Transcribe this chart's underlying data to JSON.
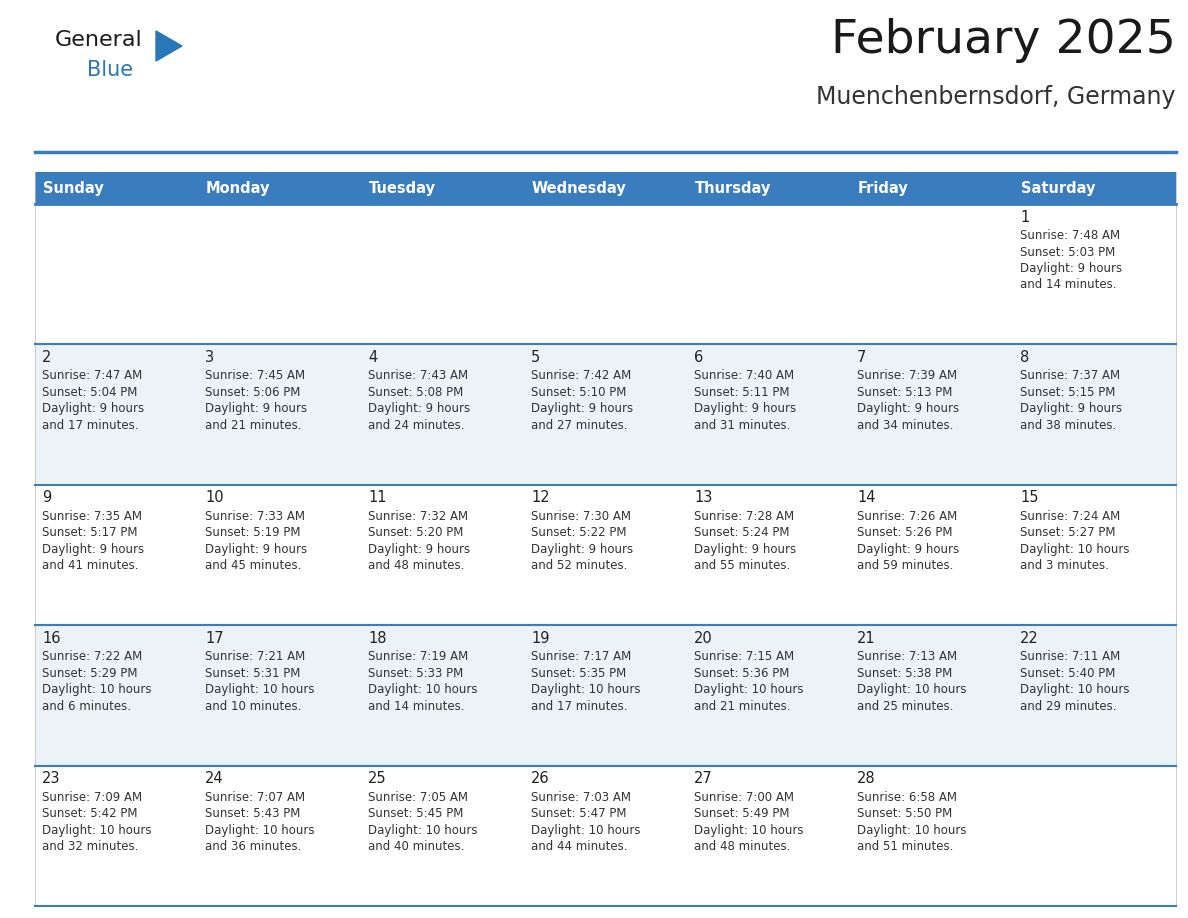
{
  "title": "February 2025",
  "subtitle": "Muenchenbernsdorf, Germany",
  "days_of_week": [
    "Sunday",
    "Monday",
    "Tuesday",
    "Wednesday",
    "Thursday",
    "Friday",
    "Saturday"
  ],
  "header_bg": "#3a7dbf",
  "header_text": "#ffffff",
  "row_bg_odd": "#ffffff",
  "row_bg_even": "#edf2f7",
  "border_color": "#3a7dbf",
  "day_number_color": "#222222",
  "cell_text_color": "#333333",
  "title_color": "#1a1a1a",
  "subtitle_color": "#333333",
  "logo_general_color": "#1a1a1a",
  "logo_blue_color": "#2878b8",
  "calendar_data": [
    [
      {
        "day": "",
        "info": ""
      },
      {
        "day": "",
        "info": ""
      },
      {
        "day": "",
        "info": ""
      },
      {
        "day": "",
        "info": ""
      },
      {
        "day": "",
        "info": ""
      },
      {
        "day": "",
        "info": ""
      },
      {
        "day": "1",
        "info": "Sunrise: 7:48 AM\nSunset: 5:03 PM\nDaylight: 9 hours\nand 14 minutes."
      }
    ],
    [
      {
        "day": "2",
        "info": "Sunrise: 7:47 AM\nSunset: 5:04 PM\nDaylight: 9 hours\nand 17 minutes."
      },
      {
        "day": "3",
        "info": "Sunrise: 7:45 AM\nSunset: 5:06 PM\nDaylight: 9 hours\nand 21 minutes."
      },
      {
        "day": "4",
        "info": "Sunrise: 7:43 AM\nSunset: 5:08 PM\nDaylight: 9 hours\nand 24 minutes."
      },
      {
        "day": "5",
        "info": "Sunrise: 7:42 AM\nSunset: 5:10 PM\nDaylight: 9 hours\nand 27 minutes."
      },
      {
        "day": "6",
        "info": "Sunrise: 7:40 AM\nSunset: 5:11 PM\nDaylight: 9 hours\nand 31 minutes."
      },
      {
        "day": "7",
        "info": "Sunrise: 7:39 AM\nSunset: 5:13 PM\nDaylight: 9 hours\nand 34 minutes."
      },
      {
        "day": "8",
        "info": "Sunrise: 7:37 AM\nSunset: 5:15 PM\nDaylight: 9 hours\nand 38 minutes."
      }
    ],
    [
      {
        "day": "9",
        "info": "Sunrise: 7:35 AM\nSunset: 5:17 PM\nDaylight: 9 hours\nand 41 minutes."
      },
      {
        "day": "10",
        "info": "Sunrise: 7:33 AM\nSunset: 5:19 PM\nDaylight: 9 hours\nand 45 minutes."
      },
      {
        "day": "11",
        "info": "Sunrise: 7:32 AM\nSunset: 5:20 PM\nDaylight: 9 hours\nand 48 minutes."
      },
      {
        "day": "12",
        "info": "Sunrise: 7:30 AM\nSunset: 5:22 PM\nDaylight: 9 hours\nand 52 minutes."
      },
      {
        "day": "13",
        "info": "Sunrise: 7:28 AM\nSunset: 5:24 PM\nDaylight: 9 hours\nand 55 minutes."
      },
      {
        "day": "14",
        "info": "Sunrise: 7:26 AM\nSunset: 5:26 PM\nDaylight: 9 hours\nand 59 minutes."
      },
      {
        "day": "15",
        "info": "Sunrise: 7:24 AM\nSunset: 5:27 PM\nDaylight: 10 hours\nand 3 minutes."
      }
    ],
    [
      {
        "day": "16",
        "info": "Sunrise: 7:22 AM\nSunset: 5:29 PM\nDaylight: 10 hours\nand 6 minutes."
      },
      {
        "day": "17",
        "info": "Sunrise: 7:21 AM\nSunset: 5:31 PM\nDaylight: 10 hours\nand 10 minutes."
      },
      {
        "day": "18",
        "info": "Sunrise: 7:19 AM\nSunset: 5:33 PM\nDaylight: 10 hours\nand 14 minutes."
      },
      {
        "day": "19",
        "info": "Sunrise: 7:17 AM\nSunset: 5:35 PM\nDaylight: 10 hours\nand 17 minutes."
      },
      {
        "day": "20",
        "info": "Sunrise: 7:15 AM\nSunset: 5:36 PM\nDaylight: 10 hours\nand 21 minutes."
      },
      {
        "day": "21",
        "info": "Sunrise: 7:13 AM\nSunset: 5:38 PM\nDaylight: 10 hours\nand 25 minutes."
      },
      {
        "day": "22",
        "info": "Sunrise: 7:11 AM\nSunset: 5:40 PM\nDaylight: 10 hours\nand 29 minutes."
      }
    ],
    [
      {
        "day": "23",
        "info": "Sunrise: 7:09 AM\nSunset: 5:42 PM\nDaylight: 10 hours\nand 32 minutes."
      },
      {
        "day": "24",
        "info": "Sunrise: 7:07 AM\nSunset: 5:43 PM\nDaylight: 10 hours\nand 36 minutes."
      },
      {
        "day": "25",
        "info": "Sunrise: 7:05 AM\nSunset: 5:45 PM\nDaylight: 10 hours\nand 40 minutes."
      },
      {
        "day": "26",
        "info": "Sunrise: 7:03 AM\nSunset: 5:47 PM\nDaylight: 10 hours\nand 44 minutes."
      },
      {
        "day": "27",
        "info": "Sunrise: 7:00 AM\nSunset: 5:49 PM\nDaylight: 10 hours\nand 48 minutes."
      },
      {
        "day": "28",
        "info": "Sunrise: 6:58 AM\nSunset: 5:50 PM\nDaylight: 10 hours\nand 51 minutes."
      },
      {
        "day": "",
        "info": ""
      }
    ]
  ]
}
